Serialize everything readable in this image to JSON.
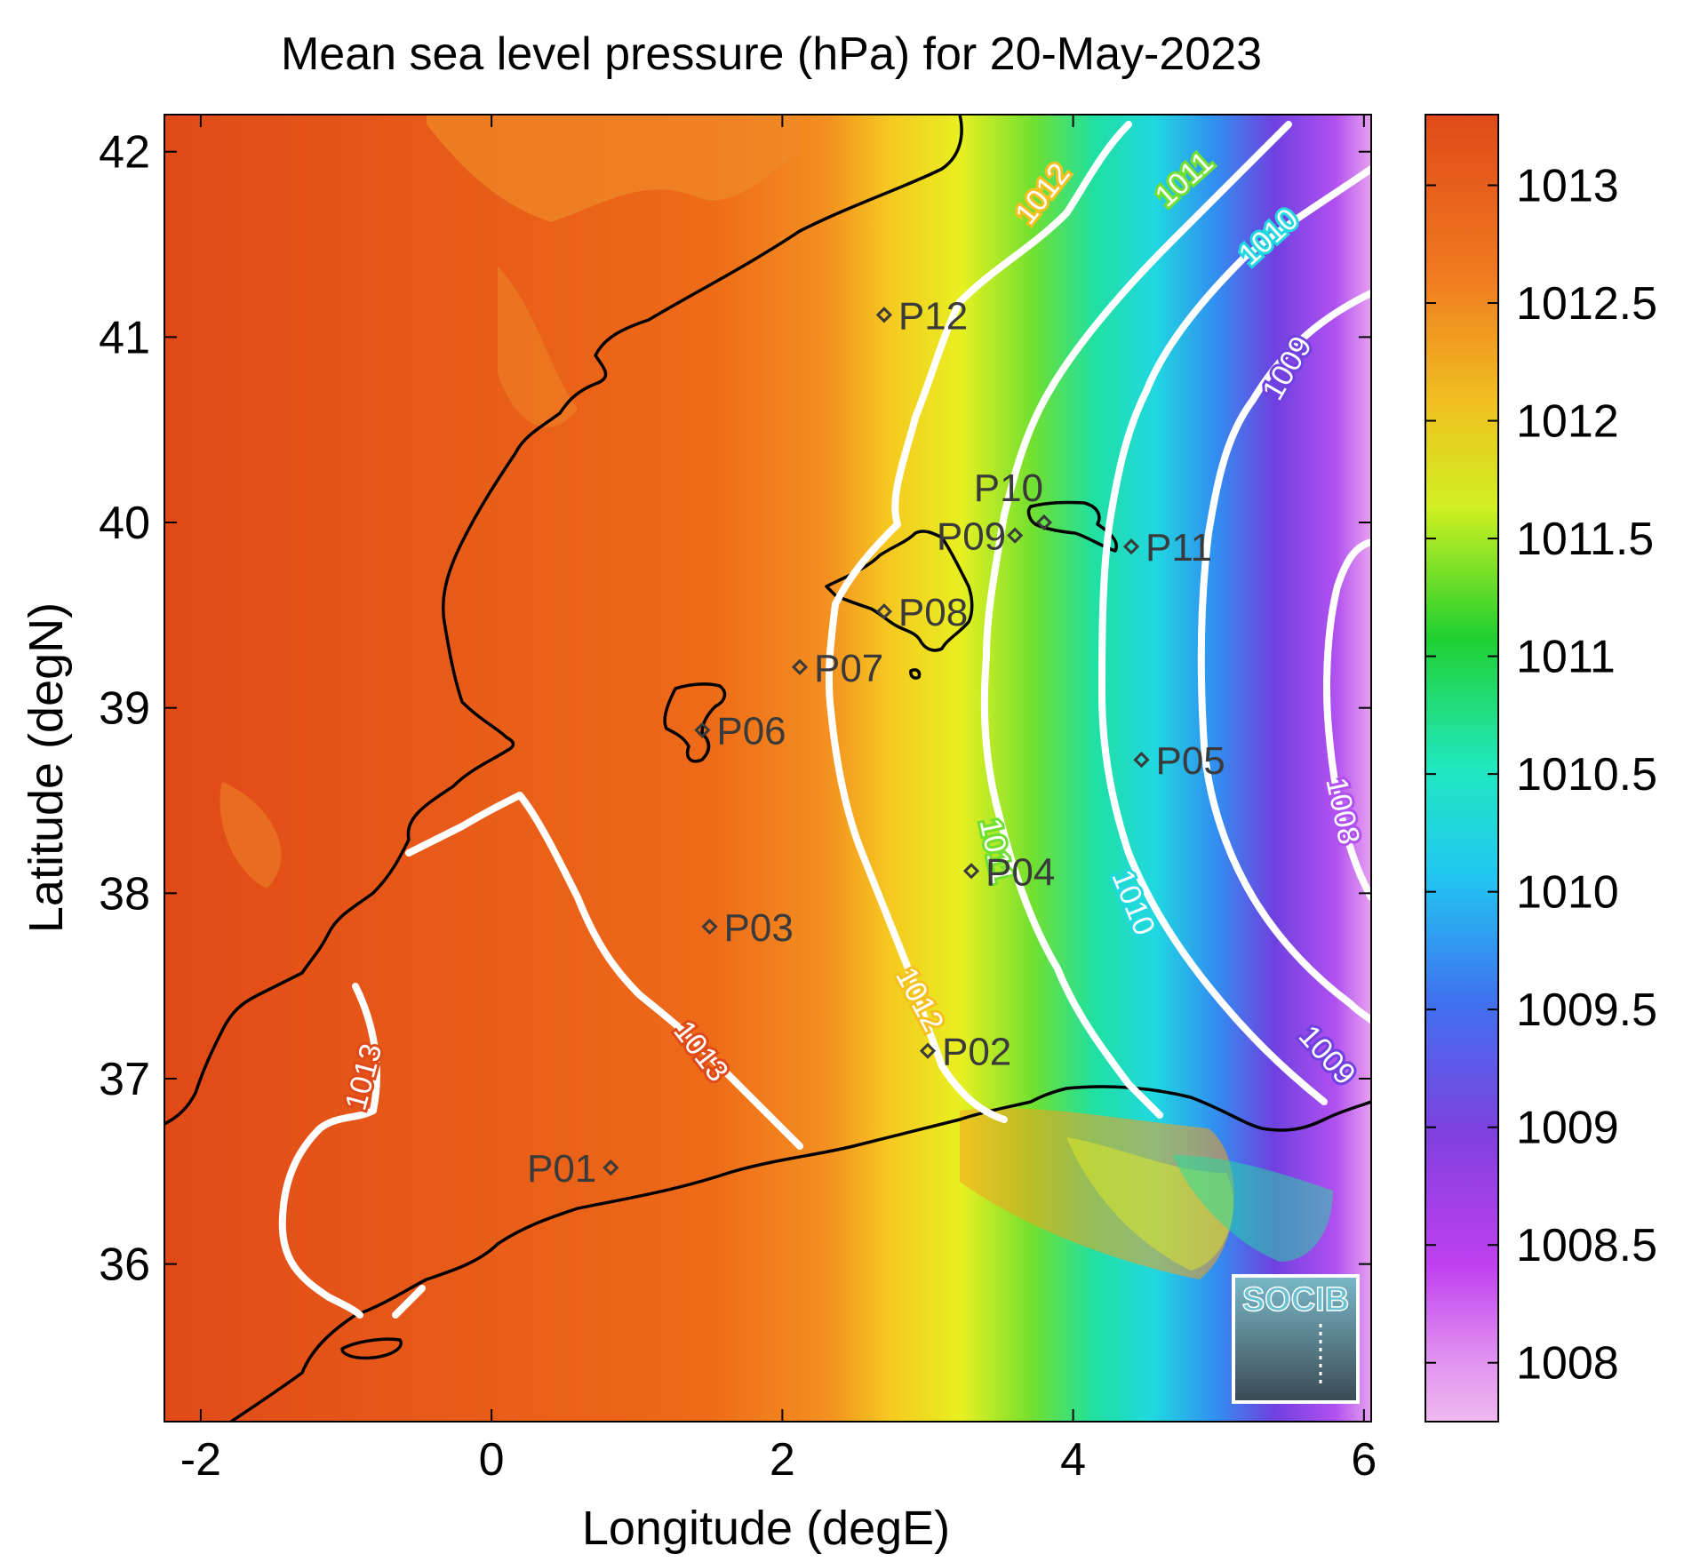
{
  "title": "Mean sea level pressure (hPa) for 20-May-2023",
  "xlabel": "Longitude (degE)",
  "ylabel": "Latitude (degN)",
  "x_ticks": [
    "-2",
    "0",
    "2",
    "4",
    "6"
  ],
  "y_ticks": [
    "42",
    "41",
    "40",
    "39",
    "38",
    "37",
    "36"
  ],
  "xlim": [
    -2.25,
    6.05
  ],
  "ylim": [
    35.15,
    42.2
  ],
  "colorbar": {
    "ticks": [
      "1013",
      "1012.5",
      "1012",
      "1011.5",
      "1011",
      "1010.5",
      "1010",
      "1009.5",
      "1009",
      "1008.5",
      "1008"
    ],
    "range": [
      1007.75,
      1013.3
    ],
    "colors": [
      "#f0b8f0",
      "#c040f0",
      "#8040e0",
      "#4070f0",
      "#20c8f0",
      "#20e8c0",
      "#20d030",
      "#d0f020",
      "#f0c020",
      "#f08020",
      "#e04a18"
    ]
  },
  "contour_labels": [
    "1013",
    "1013",
    "1012",
    "1012",
    "1011",
    "1011",
    "1010",
    "1010",
    "1010",
    "1009",
    "1009",
    "1008"
  ],
  "stations": [
    {
      "id": "P01",
      "lon": 0.82,
      "lat": 36.52
    },
    {
      "id": "P02",
      "lon": 3.0,
      "lat": 37.15
    },
    {
      "id": "P03",
      "lon": 1.5,
      "lat": 37.82
    },
    {
      "id": "P04",
      "lon": 3.3,
      "lat": 38.12
    },
    {
      "id": "P05",
      "lon": 4.47,
      "lat": 38.72
    },
    {
      "id": "P06",
      "lon": 1.45,
      "lat": 38.88
    },
    {
      "id": "P07",
      "lon": 2.12,
      "lat": 39.22
    },
    {
      "id": "P08",
      "lon": 2.7,
      "lat": 39.52
    },
    {
      "id": "P09",
      "lon": 3.6,
      "lat": 39.93
    },
    {
      "id": "P10",
      "lon": 3.8,
      "lat": 40.0
    },
    {
      "id": "P11",
      "lon": 4.4,
      "lat": 39.87
    },
    {
      "id": "P12",
      "lon": 2.7,
      "lat": 41.12
    }
  ],
  "logo": "SOCIB",
  "chart_data": {
    "type": "heatmap",
    "title": "Mean sea level pressure (hPa) for 20-May-2023",
    "xlabel": "Longitude (degE)",
    "ylabel": "Latitude (degN)",
    "xlim": [
      -2.25,
      6.05
    ],
    "ylim": [
      35.15,
      42.2
    ],
    "colorbar_range": [
      1007.75,
      1013.3
    ],
    "contour_levels": [
      1008,
      1009,
      1010,
      1011,
      1012,
      1013
    ],
    "grid": false
  }
}
